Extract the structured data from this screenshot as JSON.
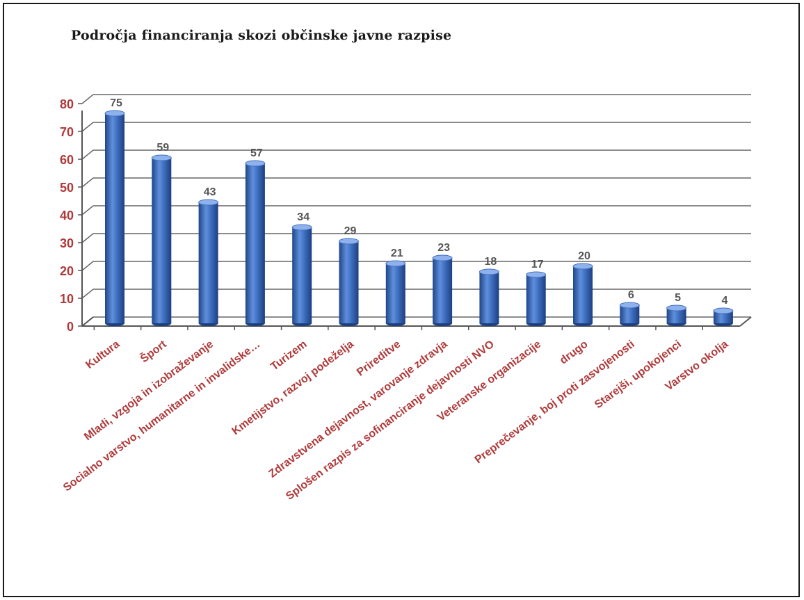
{
  "chart_data": {
    "type": "bar",
    "title": "Področja financiranja skozi občinske javne razpise",
    "categories": [
      "Kultura",
      "Šport",
      "Mladi, vzgoja in izobraževanje",
      "Socialno varstvo, humanitarne in invalidske…",
      "Turizem",
      "Kmetijstvo, razvoj podeželja",
      "Prireditve",
      "Zdravstvena dejavnost, varovanje zdravja",
      "Splošen razpis za sofinanciranje dejavnosti NVO",
      "Veteranske organizacije",
      "drugo",
      "Preprečevanje, boj proti zasvojenosti",
      "Starejši, upokojenci",
      "Varstvo okolja"
    ],
    "values": [
      75,
      59,
      43,
      57,
      34,
      29,
      21,
      23,
      18,
      17,
      20,
      6,
      5,
      4
    ],
    "yticks": [
      0,
      10,
      20,
      30,
      40,
      50,
      60,
      70,
      80
    ],
    "ylim": [
      0,
      80
    ],
    "xlabel": "",
    "ylabel": "",
    "grid": true,
    "legend": "none",
    "colors": {
      "bar": "#3f6fc0",
      "bar_dark": "#1f4588",
      "bar_light": "#8fb2ec",
      "tick_label": "#b03a3a",
      "value_label": "#555555",
      "grid": "#555555"
    }
  }
}
